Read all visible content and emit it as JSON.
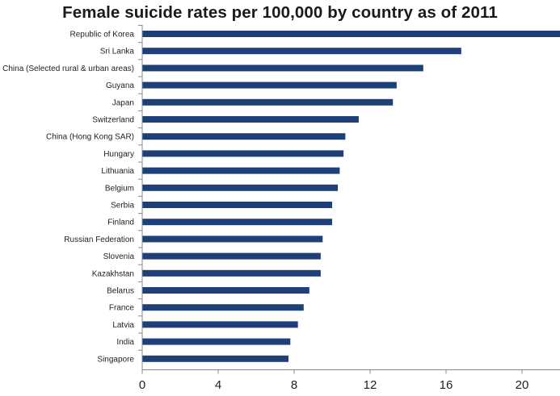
{
  "chart_data": {
    "type": "bar",
    "orientation": "horizontal",
    "title": "Female suicide rates per 100,000 by country as of 2011",
    "xlabel": "",
    "ylabel": "",
    "categories": [
      "Republic of Korea",
      "Sri Lanka",
      "China (Selected rural & urban areas)",
      "Guyana",
      "Japan",
      "Switzerland",
      "China (Hong Kong SAR)",
      "Hungary",
      "Lithuania",
      "Belgium",
      "Serbia",
      "Finland",
      "Russian Federation",
      "Slovenia",
      "Kazakhstan",
      "Belarus",
      "France",
      "Latvia",
      "India",
      "Singapore"
    ],
    "values": [
      22.1,
      16.8,
      14.8,
      13.4,
      13.2,
      11.4,
      10.7,
      10.6,
      10.4,
      10.3,
      10.0,
      10.0,
      9.5,
      9.4,
      9.4,
      8.8,
      8.5,
      8.2,
      7.8,
      7.7
    ],
    "xlim": [
      0,
      22
    ],
    "xticks": [
      "0",
      "4",
      "8",
      "12",
      "16",
      "20"
    ],
    "xtick_values": [
      0,
      4,
      8,
      12,
      16,
      20
    ],
    "grid": false,
    "legend": "none",
    "bar_color": "#1f3f78",
    "axis_color": "#888888"
  }
}
